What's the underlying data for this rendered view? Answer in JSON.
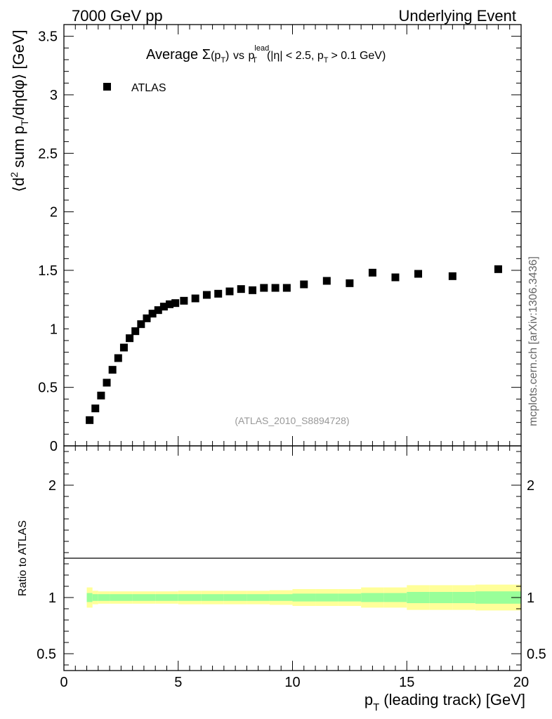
{
  "header": {
    "left": "7000 GeV pp",
    "right": "Underlying Event"
  },
  "side_label": "mcplots.cern.ch [arXiv:1306.3436]",
  "chart_data": [
    {
      "type": "scatter",
      "title": {
        "prefix": "Average",
        "sigma": "Σ",
        "pt1": "(p",
        "pt1_sub": "T",
        "pt1_close": ")",
        "vs": "vs",
        "p": "p",
        "p_sup": "lead",
        "p_sub": "T",
        "cond1": "(|η| < 2.5, p",
        "cond_sub": "T",
        "cond2": "> 0.1 GeV)"
      },
      "ylabel": "⟨d² sum p_T/dηdφ⟩ [GeV]",
      "ylabel_parts": {
        "a": "⟨d",
        "a_sup": "2",
        "b": " sum p",
        "b_sub": "T",
        "c": "/dηdφ⟩ [GeV]"
      },
      "xlim": [
        0,
        20
      ],
      "ylim": [
        0,
        3.6
      ],
      "y_ticks": [
        "0",
        "0.5",
        "1",
        "1.5",
        "2",
        "2.5",
        "3",
        "3.5"
      ],
      "legend": {
        "label": "ATLAS",
        "placement": "top-left"
      },
      "watermark": "(ATLAS_2010_S8894728)",
      "series": [
        {
          "name": "ATLAS",
          "marker": "square",
          "color": "#000000",
          "x": [
            1.125,
            1.375,
            1.625,
            1.875,
            2.125,
            2.375,
            2.625,
            2.875,
            3.125,
            3.375,
            3.625,
            3.875,
            4.125,
            4.375,
            4.625,
            4.875,
            5.25,
            5.75,
            6.25,
            6.75,
            7.25,
            7.75,
            8.25,
            8.75,
            9.25,
            9.75,
            10.5,
            11.5,
            12.5,
            13.5,
            14.5,
            15.5,
            17.0,
            19.0
          ],
          "y": [
            0.22,
            0.32,
            0.43,
            0.54,
            0.65,
            0.75,
            0.84,
            0.92,
            0.98,
            1.04,
            1.09,
            1.13,
            1.16,
            1.19,
            1.21,
            1.22,
            1.24,
            1.26,
            1.29,
            1.3,
            1.32,
            1.34,
            1.33,
            1.35,
            1.35,
            1.35,
            1.38,
            1.41,
            1.39,
            1.48,
            1.44,
            1.47,
            1.45,
            1.51
          ]
        }
      ]
    },
    {
      "type": "area",
      "ylabel": "Ratio to ATLAS",
      "xlabel": "p_T (leading track) [GeV]",
      "xlabel_parts": {
        "a": "p",
        "a_sub": "T",
        "b": "(leading track) [GeV]"
      },
      "xlim": [
        0,
        20
      ],
      "ylim": [
        0.35,
        2.35
      ],
      "x_ticks": [
        "0",
        "5",
        "10",
        "15",
        "20"
      ],
      "y_ticks": [
        "0.5",
        "1",
        "2"
      ],
      "reference_line": 1,
      "bands": {
        "x_edges": [
          1.0,
          1.25,
          1.5,
          2.0,
          3.0,
          4.0,
          5.0,
          6.0,
          7.0,
          8.0,
          9.0,
          10.0,
          11.0,
          12.0,
          13.0,
          14.0,
          15.0,
          16.0,
          17.0,
          18.0,
          20.0
        ],
        "stat_half": [
          0.04,
          0.03,
          0.03,
          0.03,
          0.03,
          0.03,
          0.03,
          0.03,
          0.03,
          0.03,
          0.03,
          0.035,
          0.035,
          0.035,
          0.04,
          0.04,
          0.05,
          0.05,
          0.05,
          0.055
        ],
        "total_half": [
          0.09,
          0.06,
          0.055,
          0.055,
          0.055,
          0.055,
          0.06,
          0.06,
          0.06,
          0.06,
          0.065,
          0.075,
          0.075,
          0.075,
          0.09,
          0.09,
          0.11,
          0.11,
          0.11,
          0.115
        ],
        "stat_color": "#99ff99",
        "total_color": "#ffff99"
      }
    }
  ]
}
